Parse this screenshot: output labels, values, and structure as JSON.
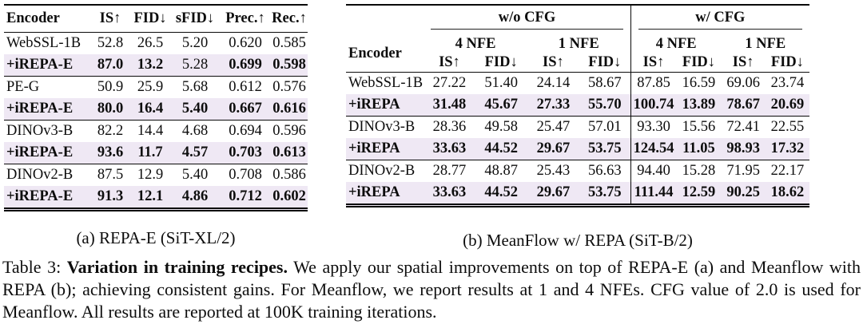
{
  "colors": {
    "highlight": "#efe8f4",
    "rule": "#0a0a0a",
    "text": "#0d0d0d"
  },
  "table_a": {
    "columns": [
      "Encoder",
      "IS↑",
      "FID↓",
      "sFID↓",
      "Prec.↑",
      "Rec.↑"
    ],
    "groups": [
      {
        "rows": [
          {
            "encoder": "WebSSL-1B",
            "values": [
              "52.8",
              "26.5",
              "5.20",
              "0.620",
              "0.585"
            ],
            "bold": [
              false,
              false,
              false,
              false,
              false
            ],
            "highlight": false
          },
          {
            "encoder": "+iREPA-E",
            "values": [
              "87.0",
              "13.2",
              "5.28",
              "0.699",
              "0.598"
            ],
            "bold": [
              true,
              true,
              false,
              true,
              true
            ],
            "highlight": true
          }
        ]
      },
      {
        "rows": [
          {
            "encoder": "PE-G",
            "values": [
              "50.9",
              "25.9",
              "5.68",
              "0.612",
              "0.576"
            ],
            "bold": [
              false,
              false,
              false,
              false,
              false
            ],
            "highlight": false
          },
          {
            "encoder": "+iREPA-E",
            "values": [
              "80.0",
              "16.4",
              "5.40",
              "0.667",
              "0.616"
            ],
            "bold": [
              true,
              true,
              true,
              true,
              true
            ],
            "highlight": true
          }
        ]
      },
      {
        "rows": [
          {
            "encoder": "DINOv3-B",
            "values": [
              "82.2",
              "14.4",
              "4.68",
              "0.694",
              "0.596"
            ],
            "bold": [
              false,
              false,
              false,
              false,
              false
            ],
            "highlight": false
          },
          {
            "encoder": "+iREPA-E",
            "values": [
              "93.6",
              "11.7",
              "4.57",
              "0.703",
              "0.613"
            ],
            "bold": [
              true,
              true,
              true,
              true,
              true
            ],
            "highlight": true
          }
        ]
      },
      {
        "rows": [
          {
            "encoder": "DINOv2-B",
            "values": [
              "87.5",
              "12.9",
              "5.40",
              "0.708",
              "0.586"
            ],
            "bold": [
              false,
              false,
              false,
              false,
              false
            ],
            "highlight": false
          },
          {
            "encoder": "+iREPA-E",
            "values": [
              "91.3",
              "12.1",
              "4.86",
              "0.712",
              "0.602"
            ],
            "bold": [
              true,
              true,
              true,
              true,
              true
            ],
            "highlight": true
          }
        ]
      }
    ],
    "caption": "(a) REPA-E (SiT-XL/2)"
  },
  "table_b": {
    "encoder_header": "Encoder",
    "cfg_headers": [
      "w/o CFG",
      "w/ CFG"
    ],
    "nfe_headers": [
      "4 NFE",
      "1 NFE",
      "4 NFE",
      "1 NFE"
    ],
    "metric_headers": [
      "IS↑",
      "FID↓",
      "IS↑",
      "FID↓",
      "IS↑",
      "FID↓",
      "IS↑",
      "FID↓"
    ],
    "groups": [
      {
        "rows": [
          {
            "encoder": "WebSSL-1B",
            "values": [
              "27.22",
              "51.40",
              "24.14",
              "58.67",
              "87.85",
              "16.59",
              "69.06",
              "23.74"
            ],
            "bold": [
              false,
              false,
              false,
              false,
              false,
              false,
              false,
              false
            ],
            "highlight": false
          },
          {
            "encoder": "+iREPA",
            "values": [
              "31.48",
              "45.67",
              "27.33",
              "55.70",
              "100.74",
              "13.89",
              "78.67",
              "20.69"
            ],
            "bold": [
              true,
              true,
              true,
              true,
              true,
              true,
              true,
              true
            ],
            "highlight": true
          }
        ]
      },
      {
        "rows": [
          {
            "encoder": "DINOv3-B",
            "values": [
              "28.36",
              "49.58",
              "25.47",
              "57.01",
              "93.30",
              "15.56",
              "72.41",
              "22.55"
            ],
            "bold": [
              false,
              false,
              false,
              false,
              false,
              false,
              false,
              false
            ],
            "highlight": false
          },
          {
            "encoder": "+iREPA",
            "values": [
              "33.63",
              "44.52",
              "29.67",
              "53.75",
              "124.54",
              "11.05",
              "98.93",
              "17.32"
            ],
            "bold": [
              true,
              true,
              true,
              true,
              true,
              true,
              true,
              true
            ],
            "highlight": true
          }
        ]
      },
      {
        "rows": [
          {
            "encoder": "DINOv2-B",
            "values": [
              "28.77",
              "48.87",
              "25.43",
              "56.63",
              "94.40",
              "15.28",
              "71.95",
              "22.17"
            ],
            "bold": [
              false,
              false,
              false,
              false,
              false,
              false,
              false,
              false
            ],
            "highlight": false
          },
          {
            "encoder": "+iREPA",
            "values": [
              "33.63",
              "44.52",
              "29.67",
              "53.75",
              "111.44",
              "12.59",
              "90.25",
              "18.62"
            ],
            "bold": [
              true,
              true,
              true,
              true,
              true,
              true,
              true,
              true
            ],
            "highlight": true
          }
        ]
      }
    ],
    "caption": "(b) MeanFlow w/ REPA (SiT-B/2)"
  },
  "caption": {
    "label": "Table 3:",
    "title": "Variation in training recipes.",
    "body": "We apply our spatial improvements on top of REPA-E (a) and Meanflow with REPA (b); achieving consistent gains. For Meanflow, we report results at 1 and 4 NFEs. CFG value of 2.0 is used for Meanflow. All results are reported at 100K training iterations."
  }
}
